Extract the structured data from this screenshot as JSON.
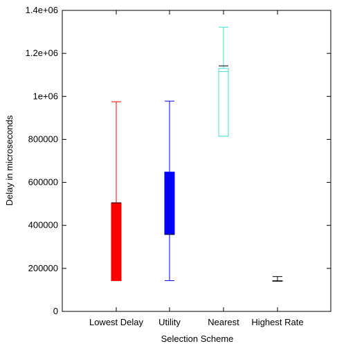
{
  "chart_data": {
    "type": "boxplot",
    "xlabel": "Selection Scheme",
    "ylabel": "Delay in microseconds",
    "ylim": [
      0,
      1400000
    ],
    "y_ticks": [
      {
        "value": 0,
        "label": "0"
      },
      {
        "value": 200000,
        "label": "200000"
      },
      {
        "value": 400000,
        "label": "400000"
      },
      {
        "value": 600000,
        "label": "600000"
      },
      {
        "value": 800000,
        "label": "800000"
      },
      {
        "value": 1000000,
        "label": "1e+06"
      },
      {
        "value": 1200000,
        "label": "1.2e+06"
      },
      {
        "value": 1400000,
        "label": "1.4e+06"
      }
    ],
    "categories": [
      "Lowest Delay",
      "Utility",
      "Nearest",
      "Highest Rate"
    ],
    "series": [
      {
        "category": "Lowest Delay",
        "color": "#ff0000",
        "filled": true,
        "min": 143000,
        "q1": 143000,
        "median": 505000,
        "q3": 505000,
        "max": 975000
      },
      {
        "category": "Utility",
        "color": "#0000ff",
        "filled": true,
        "min": 143000,
        "q1": 358000,
        "median": 358000,
        "q3": 648000,
        "max": 978000
      },
      {
        "category": "Nearest",
        "color": "#40e0d0",
        "filled": false,
        "min": 815000,
        "q1": 815000,
        "median": 1115000,
        "q3": 1130000,
        "max": 1322000,
        "marker": 1142000
      },
      {
        "category": "Highest Rate",
        "color": "#000000",
        "filled": false,
        "min": 142000,
        "q1": 142000,
        "median": 142000,
        "q3": 142000,
        "max": 162000
      }
    ],
    "grid": false,
    "legend": "none"
  }
}
